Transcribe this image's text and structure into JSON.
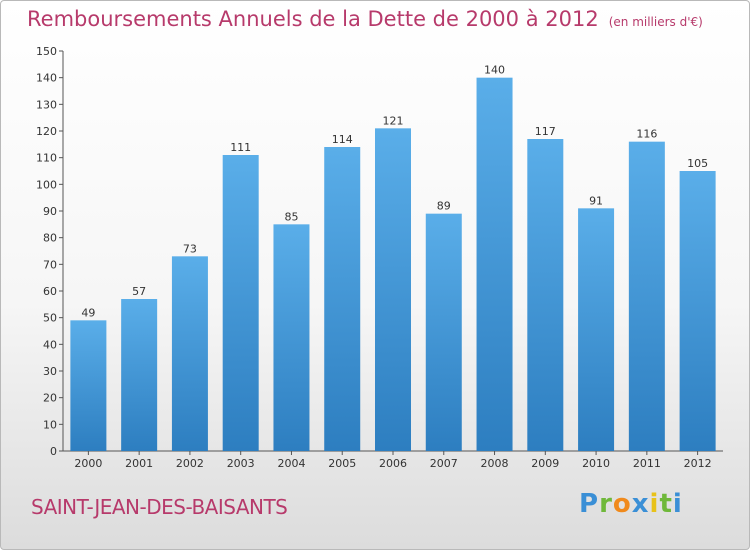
{
  "header": {
    "title": "Remboursements Annuels de la Dette de 2000 à 2012",
    "unit": "(en milliers d'€)"
  },
  "footer": {
    "place": "SAINT-JEAN-DES-BAISANTS",
    "logo": {
      "letters": [
        "P",
        "r",
        "o",
        "x",
        "i",
        "t",
        "i"
      ],
      "colors": [
        "#3a8fd6",
        "#6fb83a",
        "#f08a1c",
        "#3a8fd6",
        "#e8c21a",
        "#6fb83a",
        "#3a8fd6"
      ]
    }
  },
  "colors": {
    "bar_top": "#5aaee9",
    "bar_bottom": "#2d7ec0",
    "accent": "#b73a6b"
  },
  "chart_data": {
    "type": "bar",
    "categories": [
      "2000",
      "2001",
      "2002",
      "2003",
      "2004",
      "2005",
      "2006",
      "2007",
      "2008",
      "2009",
      "2010",
      "2011",
      "2012"
    ],
    "values": [
      49,
      57,
      73,
      111,
      85,
      114,
      121,
      89,
      140,
      117,
      91,
      116,
      105
    ],
    "ylim": [
      0,
      150
    ],
    "ytick_step": 10,
    "grid": false,
    "legend": "none"
  }
}
